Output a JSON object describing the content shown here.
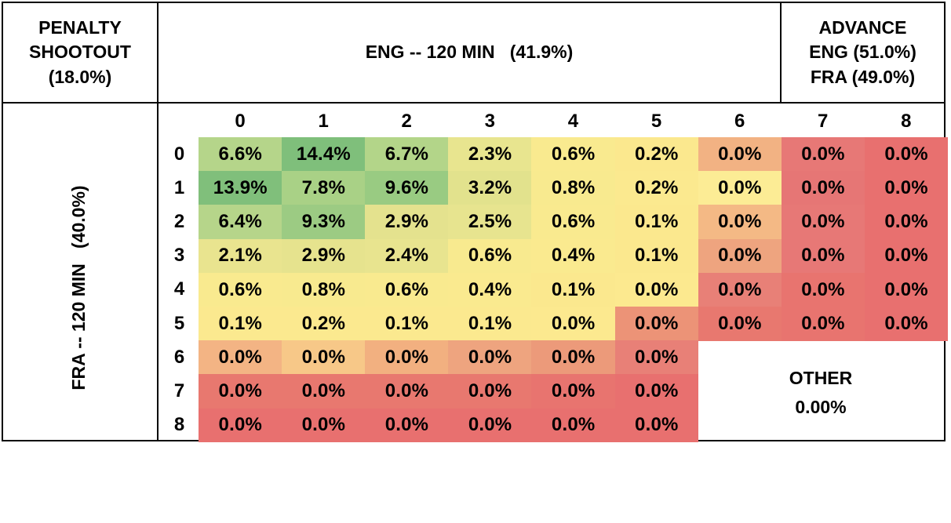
{
  "penalty": {
    "line1": "PENALTY",
    "line2": "SHOOTOUT",
    "line3": "(18.0%)"
  },
  "eng_header": "ENG -- 120 MIN   (41.9%)",
  "advance": {
    "line1": "ADVANCE",
    "line2": "ENG (51.0%)",
    "line3": "FRA (49.0%)"
  },
  "fra_label": "FRA -- 120 MIN   (40.0%)",
  "col_headers": [
    "0",
    "1",
    "2",
    "3",
    "4",
    "5",
    "6",
    "7",
    "8"
  ],
  "row_headers": [
    "0",
    "1",
    "2",
    "3",
    "4",
    "5",
    "6",
    "7",
    "8"
  ],
  "grid": [
    [
      "6.6%",
      "14.4%",
      "6.7%",
      "2.3%",
      "0.6%",
      "0.2%",
      "0.0%",
      "0.0%",
      "0.0%"
    ],
    [
      "13.9%",
      "7.8%",
      "9.6%",
      "3.2%",
      "0.8%",
      "0.2%",
      "0.0%",
      "0.0%",
      "0.0%"
    ],
    [
      "6.4%",
      "9.3%",
      "2.9%",
      "2.5%",
      "0.6%",
      "0.1%",
      "0.0%",
      "0.0%",
      "0.0%"
    ],
    [
      "2.1%",
      "2.9%",
      "2.4%",
      "0.6%",
      "0.4%",
      "0.1%",
      "0.0%",
      "0.0%",
      "0.0%"
    ],
    [
      "0.6%",
      "0.8%",
      "0.6%",
      "0.4%",
      "0.1%",
      "0.0%",
      "0.0%",
      "0.0%",
      "0.0%"
    ],
    [
      "0.1%",
      "0.2%",
      "0.1%",
      "0.1%",
      "0.0%",
      "0.0%",
      "0.0%",
      "0.0%",
      "0.0%"
    ],
    [
      "0.0%",
      "0.0%",
      "0.0%",
      "0.0%",
      "0.0%",
      "0.0%",
      "",
      "",
      ""
    ],
    [
      "0.0%",
      "0.0%",
      "0.0%",
      "0.0%",
      "0.0%",
      "0.0%",
      "",
      "",
      ""
    ],
    [
      "0.0%",
      "0.0%",
      "0.0%",
      "0.0%",
      "0.0%",
      "0.0%",
      "",
      "",
      ""
    ]
  ],
  "colors": [
    [
      "#b5d58a",
      "#7fbf7b",
      "#b3d589",
      "#e8e58f",
      "#f9ea8f",
      "#fbe88e",
      "#f2b283",
      "#e77876",
      "#e8706f"
    ],
    [
      "#80bf7b",
      "#a9d186",
      "#99cb82",
      "#e2e28d",
      "#f8ea8f",
      "#fbe98f",
      "#fcec95",
      "#e67675",
      "#e8706f"
    ],
    [
      "#b6d58a",
      "#9ccb83",
      "#e4e28e",
      "#e7e48f",
      "#f9ea8f",
      "#fbe88e",
      "#f4b985",
      "#e77876",
      "#e8706f"
    ],
    [
      "#e9e48f",
      "#e6e38e",
      "#e8e48f",
      "#f8ea8f",
      "#faea8f",
      "#fbe88e",
      "#eea47f",
      "#e77876",
      "#e8706f"
    ],
    [
      "#f9ea8f",
      "#f8ea8f",
      "#f9ea8f",
      "#faea8f",
      "#fbe88e",
      "#fce98f",
      "#e88077",
      "#e8746f",
      "#e8706f"
    ],
    [
      "#fbe98f",
      "#fbe98f",
      "#fbe98f",
      "#fbe98f",
      "#fce98f",
      "#ec9377",
      "#e8786f",
      "#e8746f",
      "#e8706f"
    ],
    [
      "#f3b484",
      "#f7c888",
      "#f2b080",
      "#eea47f",
      "#ec9a7a",
      "#e88077",
      "",
      "",
      ""
    ],
    [
      "#e8786f",
      "#e8786f",
      "#e8786f",
      "#e8786f",
      "#e8746f",
      "#e8706f",
      "",
      "",
      ""
    ],
    [
      "#e8706f",
      "#e8706f",
      "#e8706f",
      "#e8706f",
      "#e8706f",
      "#e8706f",
      "",
      "",
      ""
    ]
  ],
  "other": {
    "label": "OTHER",
    "value": "0.00%"
  }
}
